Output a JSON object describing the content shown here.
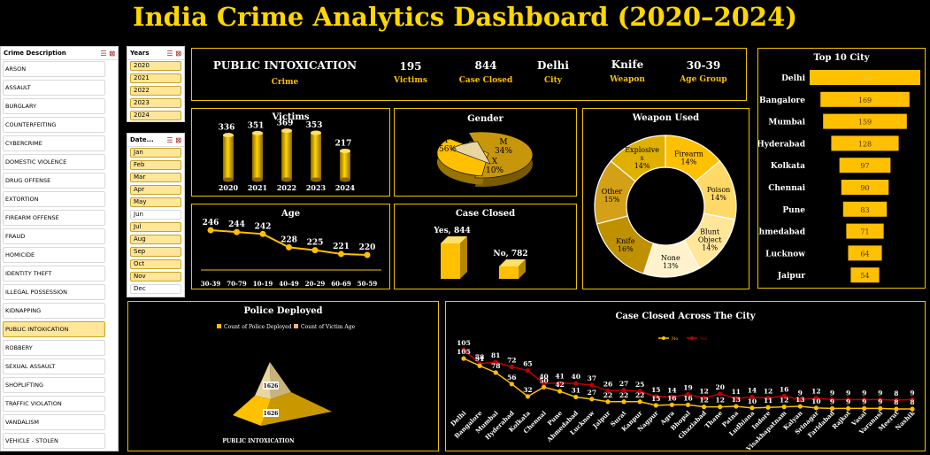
{
  "title": "India Crime Analytics Dashboard (2020–2024)",
  "crime_slicer": {
    "header": "Crime Description",
    "items": [
      "ARSON",
      "ASSAULT",
      "BURGLARY",
      "COUNTERFEITING",
      "CYBERCRIME",
      "DOMESTIC VIOLENCE",
      "DRUG OFFENSE",
      "EXTORTION",
      "FIREARM OFFENSE",
      "FRAUD",
      "HOMICIDE",
      "IDENTITY THEFT",
      "ILLEGAL POSSESSION",
      "KIDNAPPING",
      "PUBLIC INTOXICATION",
      "ROBBERY",
      "SEXUAL ASSAULT",
      "SHOPLIFTING",
      "TRAFFIC VIOLATION",
      "VANDALISM",
      "VEHICLE - STOLEN"
    ],
    "selected": "PUBLIC INTOXICATION"
  },
  "years_slicer": {
    "header": "Years",
    "items": [
      "2020",
      "2021",
      "2022",
      "2023",
      "2024"
    ]
  },
  "date_slicer": {
    "header": "Date...",
    "items": [
      "Jan",
      "Feb",
      "Mar",
      "Apr",
      "May",
      "Jun",
      "Jul",
      "Aug",
      "Sep",
      "Oct",
      "Nov",
      "Dec"
    ],
    "off": [
      "Jun",
      "Dec"
    ]
  },
  "kpi": {
    "crime": {
      "value": "PUBLIC INTOXICATION",
      "label": "Crime"
    },
    "victims": {
      "value": "195",
      "label": "Victims"
    },
    "case_closed": {
      "value": "844",
      "label": "Case Closed"
    },
    "city": {
      "value": "Delhi",
      "label": "City"
    },
    "weapon": {
      "value": "Knife",
      "label": "Weapon"
    },
    "age_group": {
      "value": "30-39",
      "label": "Age Group"
    }
  },
  "panels": {
    "victims": "Victims",
    "gender": "Gender",
    "weapon": "Weapon Used",
    "top10": "Top 10 City",
    "age": "Age",
    "case_closed": "Case Closed",
    "police": "Police Deployed",
    "city_cases": "Case Closed Across The City"
  },
  "colors": {
    "accent": "#ffd700",
    "gold": "#ffc000",
    "border": "#f2c200",
    "dark_gold": "#b8860b",
    "red": "#c00000"
  },
  "chart_data": [
    {
      "id": "victims",
      "type": "bar",
      "title": "Victims",
      "categories": [
        "2020",
        "2021",
        "2022",
        "2023",
        "2024"
      ],
      "values": [
        336,
        351,
        369,
        353,
        217
      ]
    },
    {
      "id": "gender",
      "type": "pie",
      "title": "Gender",
      "slices": [
        {
          "label": "F",
          "percent": "56%",
          "value": 56
        },
        {
          "label": "M",
          "percent": "34%",
          "value": 34
        },
        {
          "label": "X",
          "percent": "10%",
          "value": 10
        }
      ]
    },
    {
      "id": "weapon",
      "type": "pie",
      "title": "Weapon Used",
      "slices": [
        {
          "label": "Firearm",
          "percent": "14%",
          "value": 14,
          "color": "#ffc000"
        },
        {
          "label": "Poison",
          "percent": "14%",
          "value": 14,
          "color": "#ffd966"
        },
        {
          "label": "Blunt Object",
          "percent": "14%",
          "value": 14,
          "color": "#ffe699"
        },
        {
          "label": "None",
          "percent": "13%",
          "value": 13,
          "color": "#fff2cc"
        },
        {
          "label": "Knife",
          "percent": "16%",
          "value": 16,
          "color": "#bf9000"
        },
        {
          "label": "Other",
          "percent": "15%",
          "value": 15,
          "color": "#d4a017"
        },
        {
          "label": "Explosive s",
          "percent": "14%",
          "value": 14,
          "color": "#e0b000"
        }
      ]
    },
    {
      "id": "top10",
      "type": "bar",
      "title": "Top 10 City",
      "categories": [
        "Delhi",
        "Bangalore",
        "Mumbai",
        "Hyderabad",
        "Kolkata",
        "Chennai",
        "Pune",
        "Ahmedabad",
        "Lucknow",
        "Jaipur"
      ],
      "values": [
        210,
        169,
        159,
        128,
        97,
        90,
        83,
        71,
        64,
        54
      ]
    },
    {
      "id": "age",
      "type": "line",
      "title": "Age",
      "categories": [
        "30-39",
        "70-79",
        "10-19",
        "40-49",
        "20-29",
        "60-69",
        "50-59"
      ],
      "values": [
        246,
        244,
        242,
        228,
        225,
        221,
        220
      ]
    },
    {
      "id": "case_closed",
      "type": "bar",
      "title": "Case Closed",
      "categories": [
        "Yes",
        "No"
      ],
      "values": [
        844,
        782
      ],
      "labels": [
        "Yes, 844",
        "No, 782"
      ]
    },
    {
      "id": "police",
      "type": "bar",
      "title": "Police Deployed",
      "legend": [
        "Count of Police Deployed",
        "Count of Victim Age"
      ],
      "category": "PUBLIC INTOXICATION",
      "values": [
        1626,
        1626
      ]
    },
    {
      "id": "city_cases",
      "type": "line",
      "title": "Case Closed Across The City",
      "legend": [
        "No",
        "Yes"
      ],
      "categories": [
        "Delhi",
        "Bangalore",
        "Mumbai",
        "Hyderabad",
        "Kolkata",
        "Chennai",
        "Pune",
        "Ahmedabad",
        "Lucknow",
        "Jaipur",
        "Surat",
        "Kanpur",
        "Nagpur",
        "Agra",
        "Bhopal",
        "Ghaziabad",
        "Thane",
        "Patna",
        "Ludhiana",
        "Indore",
        "Visakhapatnam",
        "Kalyan",
        "Srinagar",
        "Faridabad",
        "Rajkot",
        "Vasai",
        "Varanasi",
        "Meerut",
        "Nashik"
      ],
      "series": [
        {
          "name": "No",
          "values": [
            105,
            91,
            78,
            56,
            32,
            50,
            42,
            31,
            27,
            22,
            22,
            22,
            15,
            16,
            16,
            12,
            12,
            13,
            10,
            11,
            12,
            13,
            10,
            9,
            9,
            9,
            9,
            8,
            8
          ]
        },
        {
          "name": "Yes",
          "values": [
            105,
            78,
            81,
            72,
            65,
            40,
            41,
            40,
            37,
            26,
            27,
            25,
            15,
            14,
            19,
            12,
            20,
            11,
            14,
            12,
            16,
            9,
            12,
            9,
            9,
            9,
            9,
            8,
            9
          ]
        }
      ]
    }
  ]
}
